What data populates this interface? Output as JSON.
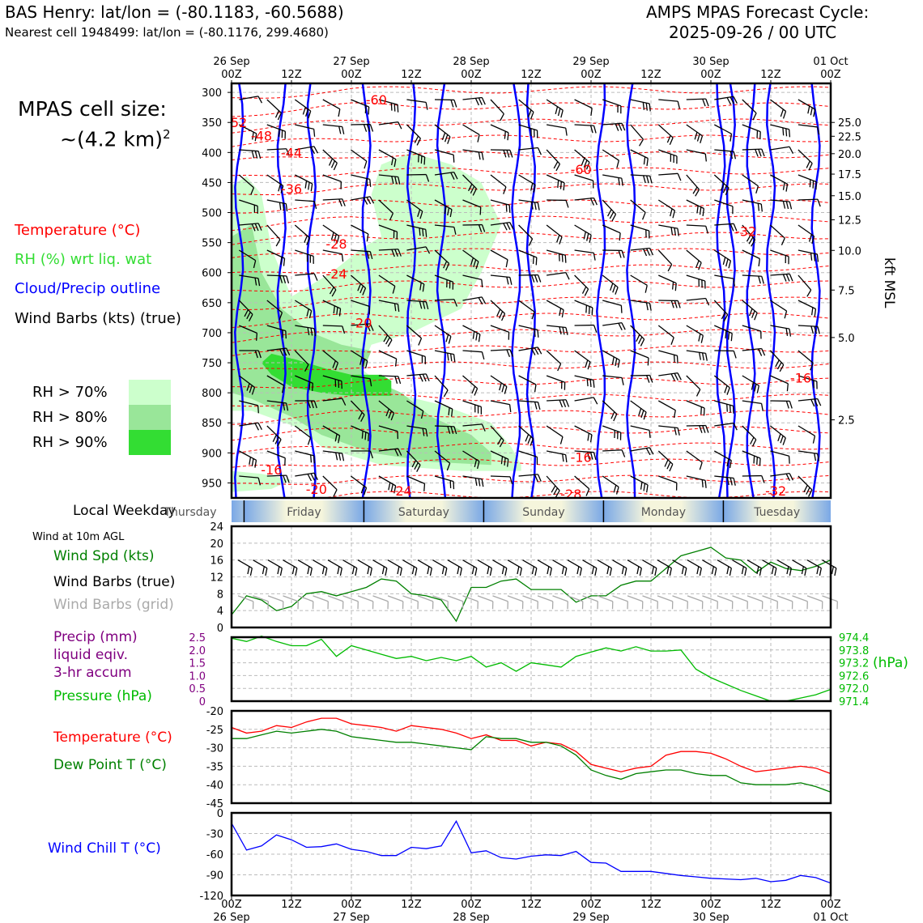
{
  "header": {
    "station_line": "BAS Henry: lat/lon = (-80.1183, -60.5688)",
    "cell_line": "Nearest cell 1948499: lat/lon = (-80.1176, 299.4680)",
    "forecast_title": "AMPS MPAS Forecast Cycle:",
    "forecast_cycle": "2025-09-26 / 00 UTC"
  },
  "legend": {
    "cell_size_label": "MPAS cell size:",
    "cell_size_value": "~(4.2 km)",
    "cell_size_exp": "2",
    "temperature": "Temperature (°C)",
    "rh": "RH (%) wrt liq. wat",
    "cloud": "Cloud/Precip outline",
    "wind_barbs": "Wind Barbs (kts) (true)",
    "rh70": "RH > 70%",
    "rh80": "RH > 80%",
    "rh90": "RH > 90%"
  },
  "colors": {
    "temperature": "#ff0000",
    "rh_label": "#33dd33",
    "cloud": "#0000ff",
    "rh70": "#ccffcc",
    "rh80": "#99e699",
    "rh90": "#33dd33",
    "wind_speed": "#008000",
    "precip": "#800080",
    "pressure": "#00bb00",
    "dew_point": "#008000",
    "wind_chill": "#0000ff",
    "grid_barbs": "#aaaaaa"
  },
  "weekday_bar": {
    "label": "Local Weekday",
    "days": [
      "Thursday",
      "Friday",
      "Saturday",
      "Sunday",
      "Monday",
      "Tuesday"
    ]
  },
  "surface_panel": {
    "wind_note": "Wind at 10m AGL",
    "wind_spd": "Wind Spd (kts)",
    "barbs_true": "Wind Barbs (true)",
    "barbs_grid": "Wind Barbs (grid)",
    "precip_1": "Precip (mm)",
    "precip_2": "liquid eqiv.",
    "precip_3": "3-hr accum",
    "pressure": "Pressure (hPa)",
    "pressure_unit": "(hPa)",
    "temperature": "Temperature (°C)",
    "dewpoint": "Dew Point T (°C)",
    "windchill": "Wind Chill T (°C)"
  },
  "chart_data": [
    {
      "type": "heatmap",
      "name": "upper-air-cross-section",
      "x_top_ticks": [
        [
          "26 Sep",
          "00Z"
        ],
        [
          "",
          "12Z"
        ],
        [
          "27 Sep",
          "00Z"
        ],
        [
          "",
          "12Z"
        ],
        [
          "28 Sep",
          "00Z"
        ],
        [
          "",
          "12Z"
        ],
        [
          "29 Sep",
          "00Z"
        ],
        [
          "",
          "12Z"
        ],
        [
          "30 Sep",
          "00Z"
        ],
        [
          "",
          "12Z"
        ],
        [
          "01 Oct",
          "00Z"
        ]
      ],
      "x_range_hours": [
        0,
        120
      ],
      "y_pressure_ticks": [
        300,
        350,
        400,
        450,
        500,
        550,
        600,
        650,
        700,
        750,
        800,
        850,
        900,
        950
      ],
      "y_pressure_range": [
        285,
        975
      ],
      "right_axis_label": "kft MSL",
      "right_axis_ticks": [
        "25.0",
        "22.5",
        "20.0",
        "17.5",
        "15.0",
        "12.5",
        "10.0",
        "7.5",
        "5.0",
        "2.5"
      ],
      "right_axis_pressures": [
        350,
        373,
        402,
        436,
        472,
        512,
        563,
        629,
        708,
        845
      ],
      "temperature_labels": [
        {
          "text": "-60",
          "h": 29,
          "p": 312
        },
        {
          "text": "-48",
          "h": 6,
          "p": 372
        },
        {
          "text": "-44",
          "h": 12,
          "p": 400
        },
        {
          "text": "-36",
          "h": 12,
          "p": 460
        },
        {
          "text": "-28",
          "h": 21,
          "p": 552
        },
        {
          "text": "-24",
          "h": 21,
          "p": 602
        },
        {
          "text": "-20",
          "h": 26,
          "p": 683
        },
        {
          "text": "-16",
          "h": 70,
          "p": 907
        },
        {
          "text": "-16",
          "h": 8,
          "p": 928
        },
        {
          "text": "-20",
          "h": 17,
          "p": 960
        },
        {
          "text": "-24",
          "h": 34,
          "p": 963
        },
        {
          "text": "-28",
          "h": 68,
          "p": 968
        },
        {
          "text": "-16",
          "h": 114,
          "p": 775
        },
        {
          "text": "-60",
          "h": 70,
          "p": 428
        },
        {
          "text": "-32",
          "h": 103,
          "p": 531
        },
        {
          "text": "-32",
          "h": 109,
          "p": 963
        },
        {
          "text": "-52",
          "h": 1,
          "p": 350
        }
      ],
      "rh_zones": [
        {
          "level": 70,
          "points": [
            [
              0,
              455
            ],
            [
              3,
              440
            ],
            [
              6,
              470
            ],
            [
              8,
              560
            ],
            [
              10,
              600
            ],
            [
              12,
              640
            ],
            [
              16,
              620
            ],
            [
              20,
              600
            ],
            [
              26,
              560
            ],
            [
              30,
              540
            ],
            [
              28,
              470
            ],
            [
              30,
              420
            ],
            [
              36,
              400
            ],
            [
              44,
              420
            ],
            [
              50,
              450
            ],
            [
              54,
              520
            ],
            [
              50,
              600
            ],
            [
              46,
              660
            ],
            [
              36,
              700
            ],
            [
              28,
              720
            ],
            [
              26,
              760
            ],
            [
              32,
              800
            ],
            [
              42,
              820
            ],
            [
              52,
              850
            ],
            [
              56,
              890
            ],
            [
              58,
              920
            ],
            [
              58,
              930
            ],
            [
              46,
              930
            ],
            [
              30,
              920
            ],
            [
              18,
              890
            ],
            [
              14,
              860
            ],
            [
              4,
              830
            ],
            [
              0,
              830
            ]
          ]
        },
        {
          "level": 70,
          "points": [
            [
              0,
              930
            ],
            [
              6,
              935
            ],
            [
              12,
              945
            ],
            [
              8,
              960
            ],
            [
              0,
              965
            ]
          ]
        },
        {
          "level": 80,
          "points": [
            [
              0,
              540
            ],
            [
              4,
              520
            ],
            [
              6,
              600
            ],
            [
              10,
              660
            ],
            [
              16,
              700
            ],
            [
              22,
              720
            ],
            [
              28,
              730
            ],
            [
              26,
              770
            ],
            [
              34,
              800
            ],
            [
              40,
              840
            ],
            [
              48,
              870
            ],
            [
              52,
              900
            ],
            [
              52,
              920
            ],
            [
              40,
              915
            ],
            [
              28,
              900
            ],
            [
              18,
              870
            ],
            [
              12,
              840
            ],
            [
              4,
              810
            ],
            [
              0,
              800
            ]
          ]
        },
        {
          "level": 90,
          "points": [
            [
              8,
              735
            ],
            [
              13,
              745
            ],
            [
              19,
              760
            ],
            [
              24,
              770
            ],
            [
              30,
              770
            ],
            [
              32,
              780
            ],
            [
              32,
              805
            ],
            [
              24,
              805
            ],
            [
              18,
              800
            ],
            [
              12,
              790
            ],
            [
              8,
              770
            ],
            [
              6,
              750
            ]
          ]
        }
      ],
      "cloud_outline_hours": [
        1.5,
        10,
        16,
        27,
        36,
        42,
        60,
        57,
        74,
        80,
        98,
        100,
        104,
        108,
        117
      ]
    },
    {
      "type": "line",
      "name": "wind-speed",
      "x_hours": [
        0,
        3,
        6,
        9,
        12,
        15,
        18,
        21,
        24,
        27,
        30,
        33,
        36,
        39,
        42,
        45,
        48,
        51,
        54,
        57,
        60,
        63,
        66,
        69,
        72,
        75,
        78,
        81,
        84,
        87,
        90,
        93,
        96,
        99,
        102,
        105,
        108,
        111,
        114,
        117,
        120
      ],
      "y": [
        3,
        7.5,
        6.5,
        4,
        5,
        8,
        8.5,
        7.5,
        8.5,
        9.5,
        11.5,
        11,
        8,
        7.5,
        6.5,
        1.5,
        9.5,
        9.5,
        11,
        11.5,
        9,
        9,
        9,
        6,
        7.5,
        7.5,
        10,
        11,
        11,
        14,
        17,
        18,
        19,
        16.5,
        16,
        13,
        15.5,
        14,
        13.5,
        14.5,
        16
      ],
      "ylim": [
        0,
        24
      ],
      "y_ticks": [
        0,
        4,
        8,
        12,
        16,
        20,
        24
      ],
      "barb_value_kt": 16
    },
    {
      "type": "line",
      "name": "pressure",
      "x_hours": [
        0,
        3,
        6,
        9,
        12,
        15,
        18,
        21,
        24,
        27,
        30,
        33,
        36,
        39,
        42,
        45,
        48,
        51,
        54,
        57,
        60,
        63,
        66,
        69,
        72,
        75,
        78,
        81,
        84,
        87,
        90,
        93,
        96,
        99,
        102,
        105,
        108,
        111,
        114,
        117,
        120
      ],
      "y": [
        974.35,
        974.2,
        974.45,
        974.2,
        974.0,
        974.0,
        974.3,
        973.5,
        974.0,
        973.8,
        973.6,
        973.4,
        973.5,
        973.3,
        973.45,
        973.3,
        973.5,
        973.0,
        973.2,
        972.8,
        973.2,
        973.1,
        973.0,
        973.5,
        973.7,
        973.9,
        973.75,
        973.95,
        973.75,
        973.75,
        973.8,
        972.9,
        972.5,
        972.2,
        971.9,
        971.65,
        971.4,
        971.4,
        971.55,
        971.7,
        971.95
      ],
      "ylim": [
        971.4,
        974.4
      ],
      "right_ticks": [
        "974.4",
        "973.8",
        "973.2",
        "972.6",
        "972.0",
        "971.4"
      ],
      "precip_ticks": [
        "2.5",
        "2.0",
        "1.5",
        "1.0",
        "0.5",
        "0"
      ],
      "precip_ylim": [
        0,
        2.5
      ],
      "precip_values": []
    },
    {
      "type": "line",
      "name": "temperature-dewpoint",
      "x_hours": [
        0,
        3,
        6,
        9,
        12,
        15,
        18,
        21,
        24,
        27,
        30,
        33,
        36,
        39,
        42,
        45,
        48,
        51,
        54,
        57,
        60,
        63,
        66,
        69,
        72,
        75,
        78,
        81,
        84,
        87,
        90,
        93,
        96,
        99,
        102,
        105,
        108,
        111,
        114,
        117,
        120
      ],
      "series": [
        {
          "name": "Temperature (°C)",
          "y": [
            -24.5,
            -26,
            -25.5,
            -24,
            -24.5,
            -23,
            -22,
            -22,
            -23.5,
            -24,
            -24.5,
            -25.5,
            -24,
            -24.5,
            -25,
            -26,
            -27.5,
            -26.5,
            -28,
            -28,
            -29.5,
            -28.5,
            -29,
            -31,
            -34.5,
            -35.5,
            -36.5,
            -35.5,
            -35,
            -32,
            -31,
            -31,
            -31.5,
            -33,
            -35,
            -36.5,
            -36,
            -35.5,
            -35,
            -35.5,
            -37
          ]
        },
        {
          "name": "Dew Point T (°C)",
          "y": [
            -27.5,
            -27.5,
            -26.5,
            -25.5,
            -26,
            -25.5,
            -25,
            -25.5,
            -27,
            -27.5,
            -28,
            -28.5,
            -28.5,
            -29,
            -29.5,
            -30,
            -30.5,
            -27,
            -27.5,
            -27.5,
            -28.5,
            -28.5,
            -29.5,
            -32,
            -36,
            -37.5,
            -38.5,
            -37,
            -36.5,
            -36,
            -36,
            -37,
            -37.5,
            -37.5,
            -39.5,
            -40,
            -40,
            -40,
            -39.5,
            -40.5,
            -42
          ]
        }
      ],
      "ylim": [
        -45,
        -20
      ],
      "y_ticks": [
        -20,
        -25,
        -30,
        -35,
        -40,
        -45
      ]
    },
    {
      "type": "line",
      "name": "wind-chill",
      "x_hours": [
        0,
        3,
        6,
        9,
        12,
        15,
        18,
        21,
        24,
        27,
        30,
        33,
        36,
        39,
        42,
        45,
        48,
        51,
        54,
        57,
        60,
        63,
        66,
        69,
        72,
        75,
        78,
        81,
        84,
        87,
        90,
        93,
        96,
        99,
        102,
        105,
        108,
        111,
        114,
        117,
        120
      ],
      "y": [
        -15,
        -54,
        -48,
        -32,
        -39,
        -50,
        -49,
        -45,
        -53,
        -56,
        -62,
        -62,
        -50,
        -52,
        -48,
        -12,
        -58,
        -55,
        -65,
        -67,
        -63,
        -61,
        -62,
        -56,
        -72,
        -73,
        -85,
        -85,
        -85,
        -88,
        -91,
        -93,
        -95,
        -96,
        -97,
        -95,
        -100,
        -98,
        -91,
        -94,
        -102
      ],
      "ylim": [
        -120,
        0
      ],
      "y_ticks": [
        0,
        -30,
        -60,
        -90,
        -120
      ]
    }
  ],
  "bottom_axis": [
    [
      "00Z",
      "26 Sep"
    ],
    [
      "12Z",
      ""
    ],
    [
      "00Z",
      "27 Sep"
    ],
    [
      "12Z",
      ""
    ],
    [
      "00Z",
      "28 Sep"
    ],
    [
      "12Z",
      ""
    ],
    [
      "00Z",
      "29 Sep"
    ],
    [
      "12Z",
      ""
    ],
    [
      "00Z",
      "30 Sep"
    ],
    [
      "12Z",
      ""
    ],
    [
      "00Z",
      "01 Oct"
    ]
  ]
}
